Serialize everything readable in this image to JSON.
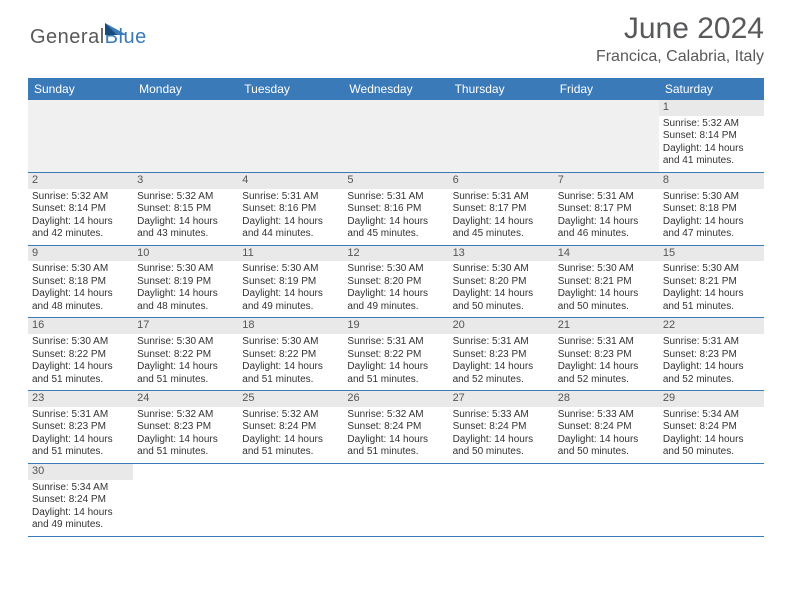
{
  "brand": {
    "part1": "General",
    "part2": "Blue"
  },
  "title": "June 2024",
  "location": "Francica, Calabria, Italy",
  "colors": {
    "header_bg": "#3a7ab8",
    "daynum_bg": "#e9e9e9",
    "text": "#333333",
    "muted": "#58595b"
  },
  "dayNames": [
    "Sunday",
    "Monday",
    "Tuesday",
    "Wednesday",
    "Thursday",
    "Friday",
    "Saturday"
  ],
  "startOffset": 6,
  "daysInMonth": 30,
  "days": {
    "1": {
      "sunrise": "5:32 AM",
      "sunset": "8:14 PM",
      "daylight": "14 hours and 41 minutes."
    },
    "2": {
      "sunrise": "5:32 AM",
      "sunset": "8:14 PM",
      "daylight": "14 hours and 42 minutes."
    },
    "3": {
      "sunrise": "5:32 AM",
      "sunset": "8:15 PM",
      "daylight": "14 hours and 43 minutes."
    },
    "4": {
      "sunrise": "5:31 AM",
      "sunset": "8:16 PM",
      "daylight": "14 hours and 44 minutes."
    },
    "5": {
      "sunrise": "5:31 AM",
      "sunset": "8:16 PM",
      "daylight": "14 hours and 45 minutes."
    },
    "6": {
      "sunrise": "5:31 AM",
      "sunset": "8:17 PM",
      "daylight": "14 hours and 45 minutes."
    },
    "7": {
      "sunrise": "5:31 AM",
      "sunset": "8:17 PM",
      "daylight": "14 hours and 46 minutes."
    },
    "8": {
      "sunrise": "5:30 AM",
      "sunset": "8:18 PM",
      "daylight": "14 hours and 47 minutes."
    },
    "9": {
      "sunrise": "5:30 AM",
      "sunset": "8:18 PM",
      "daylight": "14 hours and 48 minutes."
    },
    "10": {
      "sunrise": "5:30 AM",
      "sunset": "8:19 PM",
      "daylight": "14 hours and 48 minutes."
    },
    "11": {
      "sunrise": "5:30 AM",
      "sunset": "8:19 PM",
      "daylight": "14 hours and 49 minutes."
    },
    "12": {
      "sunrise": "5:30 AM",
      "sunset": "8:20 PM",
      "daylight": "14 hours and 49 minutes."
    },
    "13": {
      "sunrise": "5:30 AM",
      "sunset": "8:20 PM",
      "daylight": "14 hours and 50 minutes."
    },
    "14": {
      "sunrise": "5:30 AM",
      "sunset": "8:21 PM",
      "daylight": "14 hours and 50 minutes."
    },
    "15": {
      "sunrise": "5:30 AM",
      "sunset": "8:21 PM",
      "daylight": "14 hours and 51 minutes."
    },
    "16": {
      "sunrise": "5:30 AM",
      "sunset": "8:22 PM",
      "daylight": "14 hours and 51 minutes."
    },
    "17": {
      "sunrise": "5:30 AM",
      "sunset": "8:22 PM",
      "daylight": "14 hours and 51 minutes."
    },
    "18": {
      "sunrise": "5:30 AM",
      "sunset": "8:22 PM",
      "daylight": "14 hours and 51 minutes."
    },
    "19": {
      "sunrise": "5:31 AM",
      "sunset": "8:22 PM",
      "daylight": "14 hours and 51 minutes."
    },
    "20": {
      "sunrise": "5:31 AM",
      "sunset": "8:23 PM",
      "daylight": "14 hours and 52 minutes."
    },
    "21": {
      "sunrise": "5:31 AM",
      "sunset": "8:23 PM",
      "daylight": "14 hours and 52 minutes."
    },
    "22": {
      "sunrise": "5:31 AM",
      "sunset": "8:23 PM",
      "daylight": "14 hours and 52 minutes."
    },
    "23": {
      "sunrise": "5:31 AM",
      "sunset": "8:23 PM",
      "daylight": "14 hours and 51 minutes."
    },
    "24": {
      "sunrise": "5:32 AM",
      "sunset": "8:23 PM",
      "daylight": "14 hours and 51 minutes."
    },
    "25": {
      "sunrise": "5:32 AM",
      "sunset": "8:24 PM",
      "daylight": "14 hours and 51 minutes."
    },
    "26": {
      "sunrise": "5:32 AM",
      "sunset": "8:24 PM",
      "daylight": "14 hours and 51 minutes."
    },
    "27": {
      "sunrise": "5:33 AM",
      "sunset": "8:24 PM",
      "daylight": "14 hours and 50 minutes."
    },
    "28": {
      "sunrise": "5:33 AM",
      "sunset": "8:24 PM",
      "daylight": "14 hours and 50 minutes."
    },
    "29": {
      "sunrise": "5:34 AM",
      "sunset": "8:24 PM",
      "daylight": "14 hours and 50 minutes."
    },
    "30": {
      "sunrise": "5:34 AM",
      "sunset": "8:24 PM",
      "daylight": "14 hours and 49 minutes."
    }
  },
  "labels": {
    "sunrise": "Sunrise:",
    "sunset": "Sunset:",
    "daylight": "Daylight:"
  }
}
